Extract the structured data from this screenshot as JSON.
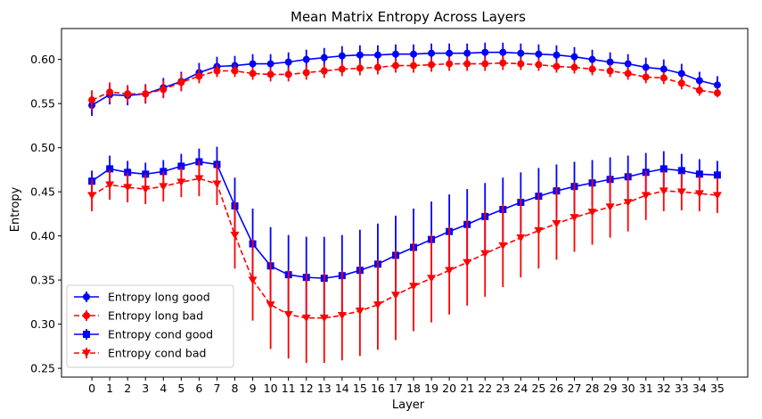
{
  "chart_data": {
    "type": "line",
    "title": "Mean Matrix Entropy Across Layers",
    "xlabel": "Layer",
    "ylabel": "Entropy",
    "x": [
      0,
      1,
      2,
      3,
      4,
      5,
      6,
      7,
      8,
      9,
      10,
      11,
      12,
      13,
      14,
      15,
      16,
      17,
      18,
      19,
      20,
      21,
      22,
      23,
      24,
      25,
      26,
      27,
      28,
      29,
      30,
      31,
      32,
      33,
      34,
      35
    ],
    "ylim": [
      0.24,
      0.635
    ],
    "yticks": [
      "0.25",
      "0.30",
      "0.35",
      "0.40",
      "0.45",
      "0.50",
      "0.55",
      "0.60"
    ],
    "grid": false,
    "legend_position": "lower-left",
    "series": [
      {
        "name": "Entropy long good",
        "color": "#0000ff",
        "line_style": "solid",
        "marker": "circle",
        "values": [
          0.548,
          0.56,
          0.559,
          0.561,
          0.568,
          0.575,
          0.585,
          0.592,
          0.593,
          0.595,
          0.595,
          0.597,
          0.6,
          0.602,
          0.604,
          0.605,
          0.605,
          0.606,
          0.606,
          0.607,
          0.607,
          0.607,
          0.608,
          0.608,
          0.607,
          0.606,
          0.605,
          0.603,
          0.6,
          0.597,
          0.595,
          0.591,
          0.589,
          0.584,
          0.576,
          0.571
        ],
        "errors": [
          0.012,
          0.011,
          0.011,
          0.011,
          0.011,
          0.011,
          0.011,
          0.011,
          0.011,
          0.011,
          0.011,
          0.011,
          0.011,
          0.011,
          0.011,
          0.011,
          0.011,
          0.011,
          0.011,
          0.011,
          0.011,
          0.011,
          0.011,
          0.011,
          0.011,
          0.011,
          0.011,
          0.011,
          0.011,
          0.011,
          0.011,
          0.011,
          0.011,
          0.011,
          0.01,
          0.01
        ]
      },
      {
        "name": "Entropy long bad",
        "color": "#ff0000",
        "line_style": "dashed",
        "marker": "circle",
        "values": [
          0.554,
          0.563,
          0.561,
          0.561,
          0.566,
          0.574,
          0.581,
          0.587,
          0.587,
          0.584,
          0.583,
          0.583,
          0.585,
          0.587,
          0.589,
          0.59,
          0.591,
          0.593,
          0.593,
          0.594,
          0.595,
          0.595,
          0.595,
          0.596,
          0.595,
          0.594,
          0.592,
          0.591,
          0.589,
          0.587,
          0.584,
          0.58,
          0.579,
          0.573,
          0.565,
          0.562
        ],
        "errors": [
          0.011,
          0.011,
          0.01,
          0.01,
          0.01,
          0.01,
          0.008,
          0.007,
          0.007,
          0.007,
          0.008,
          0.008,
          0.008,
          0.008,
          0.008,
          0.008,
          0.008,
          0.008,
          0.008,
          0.008,
          0.008,
          0.008,
          0.008,
          0.008,
          0.007,
          0.007,
          0.007,
          0.007,
          0.007,
          0.007,
          0.007,
          0.007,
          0.007,
          0.007,
          0.006,
          0.005
        ]
      },
      {
        "name": "Entropy cond good",
        "color": "#0000ff",
        "line_style": "solid",
        "marker": "square",
        "values": [
          0.462,
          0.476,
          0.472,
          0.47,
          0.473,
          0.479,
          0.484,
          0.481,
          0.434,
          0.391,
          0.366,
          0.356,
          0.353,
          0.352,
          0.355,
          0.361,
          0.368,
          0.378,
          0.387,
          0.396,
          0.405,
          0.413,
          0.422,
          0.43,
          0.438,
          0.445,
          0.451,
          0.456,
          0.46,
          0.464,
          0.467,
          0.472,
          0.476,
          0.474,
          0.47,
          0.469
        ],
        "errors": [
          0.012,
          0.015,
          0.013,
          0.013,
          0.013,
          0.014,
          0.015,
          0.02,
          0.032,
          0.04,
          0.044,
          0.045,
          0.046,
          0.047,
          0.046,
          0.046,
          0.046,
          0.045,
          0.044,
          0.043,
          0.042,
          0.04,
          0.038,
          0.036,
          0.034,
          0.032,
          0.03,
          0.028,
          0.026,
          0.025,
          0.024,
          0.022,
          0.02,
          0.019,
          0.017,
          0.016
        ]
      },
      {
        "name": "Entropy cond bad",
        "color": "#ff0000",
        "line_style": "dashed",
        "marker": "triangle-down",
        "values": [
          0.446,
          0.458,
          0.455,
          0.453,
          0.456,
          0.461,
          0.465,
          0.459,
          0.401,
          0.35,
          0.322,
          0.311,
          0.307,
          0.307,
          0.31,
          0.315,
          0.322,
          0.333,
          0.343,
          0.352,
          0.361,
          0.37,
          0.38,
          0.389,
          0.398,
          0.406,
          0.414,
          0.421,
          0.427,
          0.433,
          0.438,
          0.446,
          0.451,
          0.45,
          0.448,
          0.446
        ],
        "errors": [
          0.018,
          0.017,
          0.017,
          0.017,
          0.017,
          0.017,
          0.02,
          0.024,
          0.038,
          0.046,
          0.05,
          0.05,
          0.051,
          0.051,
          0.051,
          0.051,
          0.051,
          0.051,
          0.051,
          0.05,
          0.05,
          0.049,
          0.049,
          0.047,
          0.045,
          0.043,
          0.041,
          0.039,
          0.037,
          0.035,
          0.033,
          0.028,
          0.023,
          0.021,
          0.02,
          0.02
        ]
      }
    ]
  }
}
